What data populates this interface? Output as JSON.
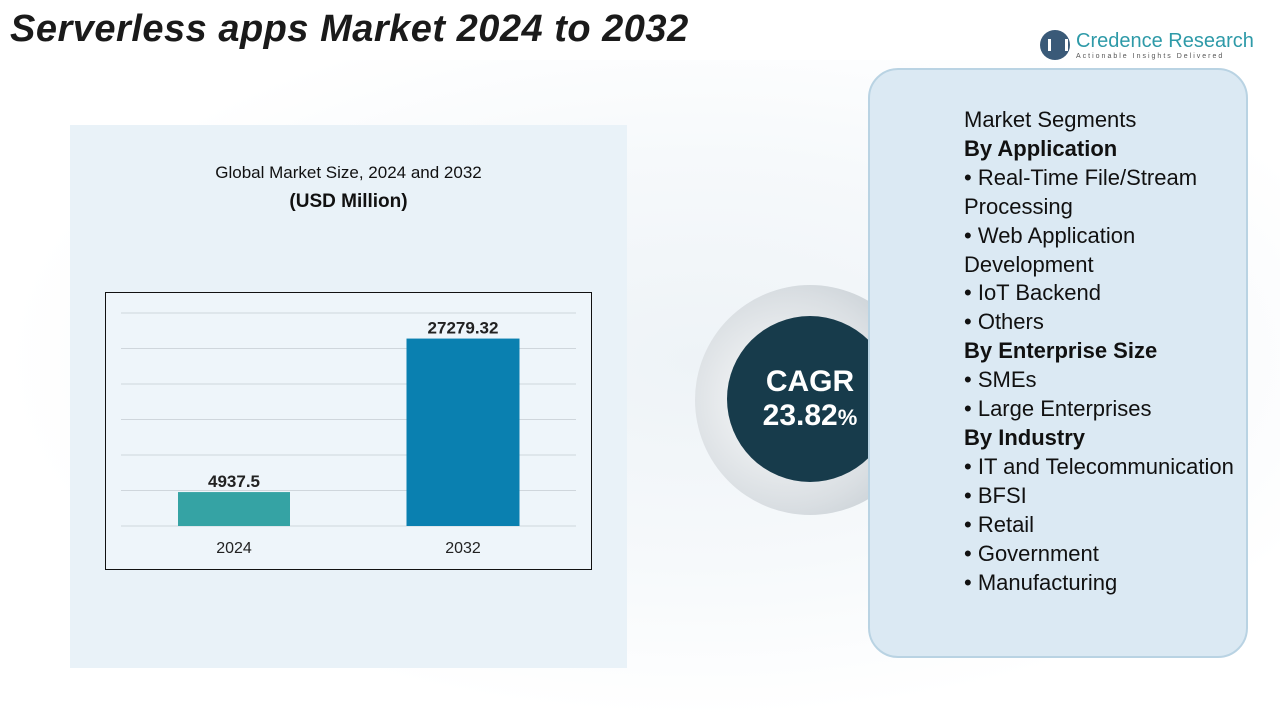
{
  "title": "Serverless apps Market 2024 to 2032",
  "logo": {
    "name": "Credence Research",
    "tagline": "Actionable Insights Delivered"
  },
  "cagr": {
    "label": "CAGR",
    "value": "23.82",
    "unit": "%"
  },
  "segments": {
    "heading": "Market Segments",
    "groups": [
      {
        "title": "By Application",
        "items": [
          "Real-Time File/Stream Processing",
          "Web Application Development",
          "IoT Backend",
          "Others"
        ]
      },
      {
        "title": "By Enterprise Size",
        "items": [
          "SMEs",
          "Large Enterprises"
        ]
      },
      {
        "title": "By Industry",
        "items": [
          "IT and Telecommunication",
          "BFSI",
          "Retail",
          "Government",
          "Manufacturing"
        ]
      }
    ]
  },
  "chart_data": {
    "type": "bar",
    "title": "Global Market Size, 2024 and 2032",
    "subtitle": "(USD Million)",
    "categories": [
      "2024",
      "2032"
    ],
    "values": [
      4937.5,
      27279.32
    ],
    "data_labels": [
      "4937.5",
      "27279.32"
    ],
    "colors": [
      "#35a3a4",
      "#0a80b0"
    ],
    "grid": true,
    "ylim": [
      0,
      31000
    ]
  }
}
